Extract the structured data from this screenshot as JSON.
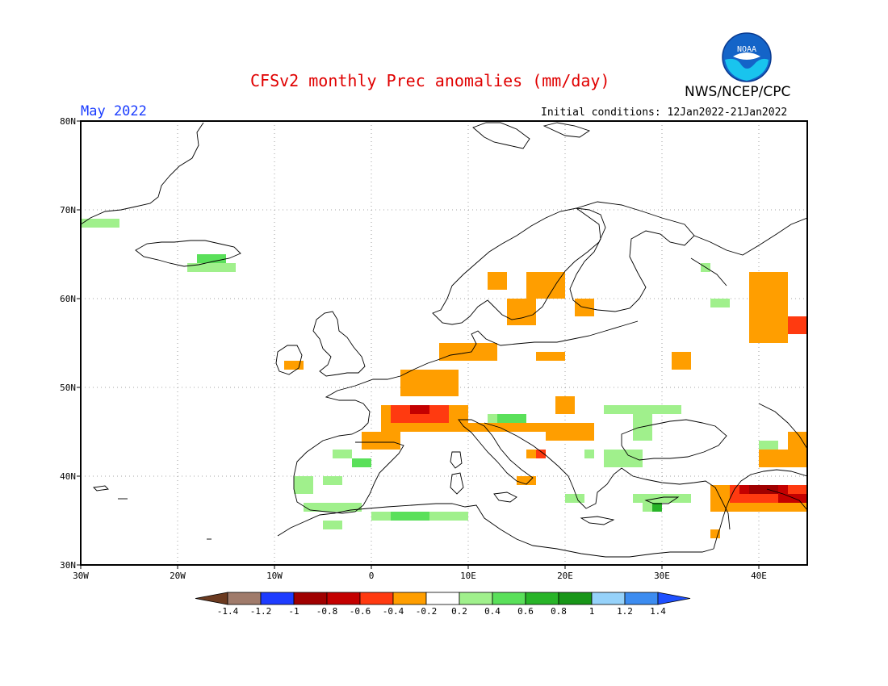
{
  "title": "CFSv2 monthly Prec anomalies (mm/day)",
  "agency": "NWS/NCEP/CPC",
  "logo_text": "NOAA",
  "month": "May 2022",
  "initial_conditions": "Initial conditions: 12Jan2022-21Jan2022",
  "lon_labels": [
    "30W",
    "20W",
    "10W",
    "0",
    "10E",
    "20E",
    "30E",
    "40E"
  ],
  "lat_labels": [
    "80N",
    "70N",
    "60N",
    "50N",
    "40N",
    "30N"
  ],
  "legend": {
    "labels": [
      "-1.4",
      "-1.2",
      "-1",
      "-0.8",
      "-0.6",
      "-0.4",
      "-0.2",
      "0.2",
      "0.4",
      "0.6",
      "0.8",
      "1",
      "1.2",
      "1.4"
    ],
    "colors": [
      "#6b3a20",
      "#a07b6b",
      "#1e3cff",
      "#a00000",
      "#c40000",
      "#ff3a10",
      "#ff9e00",
      "#ffffff",
      "#a0f08c",
      "#5ae05a",
      "#28b428",
      "#189618",
      "#96d2fa",
      "#3c8cf0",
      "#1e50ff"
    ]
  },
  "colors": {
    "title": "#e00000",
    "month": "#1a3cff",
    "wet_light": "#a0f08c",
    "wet_mid": "#5ae05a",
    "wet_strong": "#28b428",
    "dry_light": "#ff9e00",
    "dry_mid": "#ff3a10",
    "dry_strong": "#c40000",
    "dry_extreme": "#a00000"
  }
}
